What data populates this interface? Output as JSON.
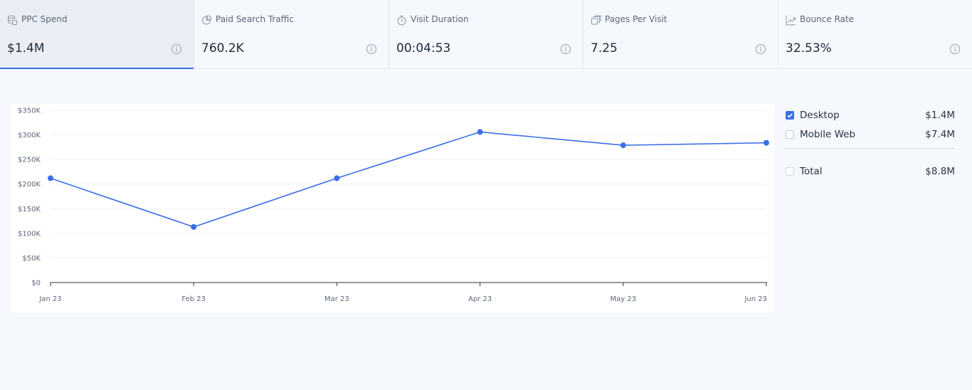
{
  "metrics": [
    {
      "label": "PPC Spend",
      "value": "$1.4M",
      "icon": "coins-icon",
      "active": true
    },
    {
      "label": "Paid Search Traffic",
      "value": "760.2K",
      "icon": "pie-chart-icon"
    },
    {
      "label": "Visit Duration",
      "value": "00:04:53",
      "icon": "stopwatch-icon"
    },
    {
      "label": "Pages Per Visit",
      "value": "7.25",
      "icon": "pages-icon"
    },
    {
      "label": "Bounce Rate",
      "value": "32.53%",
      "icon": "trend-icon"
    }
  ],
  "legend": {
    "items": [
      {
        "name": "Desktop",
        "value": "$1.4M",
        "checked": true
      },
      {
        "name": "Mobile Web",
        "value": "$7.4M",
        "checked": false
      }
    ],
    "total": {
      "name": "Total",
      "value": "$8.8M",
      "checked": false
    }
  },
  "chart_data": {
    "type": "line",
    "categories": [
      "Jan 23",
      "Feb 23",
      "Mar 23",
      "Apr 23",
      "May 23",
      "Jun 23"
    ],
    "series": [
      {
        "values": [
          212000,
          113000,
          212000,
          306000,
          279000,
          284000
        ],
        "color": "#3b6ee6"
      }
    ],
    "y_ticks": [
      "$0",
      "$50K",
      "$100K",
      "$150K",
      "$200K",
      "$250K",
      "$300K",
      "$350K"
    ],
    "ylim": [
      0,
      350000
    ],
    "grid": true
  },
  "colors": {
    "accent": "#3b6ee6"
  }
}
